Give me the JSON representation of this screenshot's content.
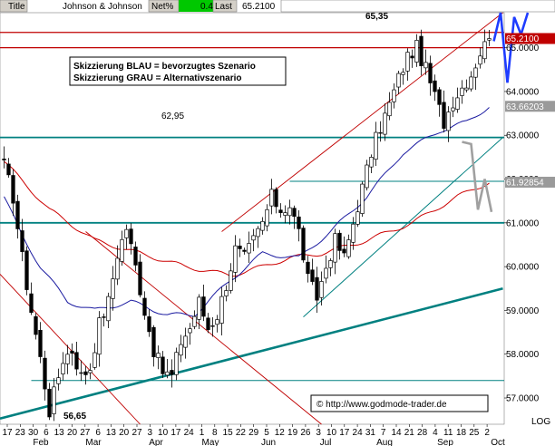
{
  "header": {
    "title": "Title",
    "name": "Johnson & Johnson",
    "netpct_label": "Net%",
    "netpct_value": "0.41",
    "last_label": "Last",
    "last_value": "65.2100"
  },
  "colors": {
    "blue_scenario": "#1e3cff",
    "grey_scenario": "#a0a0a0",
    "resistance_red": "#c00000",
    "teal": "#008080",
    "ma_red": "#cc0000",
    "ma_blue": "#1a1aa0",
    "netpct_bg": "#00c800"
  },
  "chart_data": {
    "type": "candlestick",
    "legend_note_1": "Skizzierung BLAU = bevorzugtes Szenario",
    "legend_note_2": "Skizzierung GRAU = Alternativszenario",
    "level_labels": {
      "high": "65,35",
      "low": "56,65",
      "mid": "62,95"
    },
    "copyright": "© http://www.godmode-trader.de",
    "log_label": "LOG",
    "ylim": [
      56.4,
      65.8
    ],
    "y_ticks": [
      "57.0000",
      "58.0000",
      "59.0000",
      "60.0000",
      "61.0000",
      "62.0000",
      "63.0000",
      "64.0000",
      "65.0000"
    ],
    "price_labels": {
      "last": "65.2100",
      "ma_blue": "63.66203",
      "ma_red": "61.92854"
    },
    "x_day_ticks": [
      "17",
      "23",
      "30",
      "6",
      "13",
      "20",
      "27",
      "6",
      "13",
      "20",
      "27",
      "3",
      "10",
      "17",
      "24",
      "1",
      "8",
      "15",
      "22",
      "29",
      "5",
      "12",
      "19",
      "26",
      "3",
      "10",
      "17",
      "24",
      "31",
      "7",
      "14",
      "21",
      "28",
      "4",
      "11",
      "18",
      "25",
      "2"
    ],
    "x_month_ticks": [
      "Feb",
      "Mar",
      "Apr",
      "May",
      "Jun",
      "Jul",
      "Aug",
      "Sep",
      "Oct"
    ],
    "horizontal_levels": [
      {
        "value": 65.35,
        "kind": "resistance"
      },
      {
        "value": 65.0,
        "kind": "resistance"
      },
      {
        "value": 62.95,
        "kind": "support"
      },
      {
        "value": 61.0,
        "kind": "support"
      },
      {
        "value": 61.95,
        "kind": "support-short"
      },
      {
        "value": 57.4,
        "kind": "support-thin"
      }
    ],
    "anchors": [
      [
        0,
        62.3
      ],
      [
        2,
        61.6
      ],
      [
        4,
        60.2
      ],
      [
        6,
        59.0
      ],
      [
        8,
        57.9
      ],
      [
        9,
        57.3
      ],
      [
        10,
        56.7
      ],
      [
        11,
        57.1
      ],
      [
        13,
        57.9
      ],
      [
        15,
        58.1
      ],
      [
        17,
        57.5
      ],
      [
        19,
        57.7
      ],
      [
        21,
        58.7
      ],
      [
        23,
        59.2
      ],
      [
        25,
        60.3
      ],
      [
        27,
        60.9
      ],
      [
        29,
        60.0
      ],
      [
        31,
        59.0
      ],
      [
        33,
        58.1
      ],
      [
        35,
        57.6
      ],
      [
        37,
        57.5
      ],
      [
        39,
        58.3
      ],
      [
        41,
        58.6
      ],
      [
        43,
        59.2
      ],
      [
        45,
        58.6
      ],
      [
        47,
        58.9
      ],
      [
        49,
        59.6
      ],
      [
        51,
        60.4
      ],
      [
        53,
        60.2
      ],
      [
        55,
        60.6
      ],
      [
        57,
        61.0
      ],
      [
        59,
        61.6
      ],
      [
        61,
        61.3
      ],
      [
        63,
        61.4
      ],
      [
        65,
        60.8
      ],
      [
        67,
        59.7
      ],
      [
        69,
        59.3
      ],
      [
        71,
        60.0
      ],
      [
        73,
        60.6
      ],
      [
        75,
        60.2
      ],
      [
        77,
        61.0
      ],
      [
        79,
        61.8
      ],
      [
        81,
        62.6
      ],
      [
        83,
        63.2
      ],
      [
        85,
        63.7
      ],
      [
        87,
        64.3
      ],
      [
        89,
        64.8
      ],
      [
        91,
        65.0
      ],
      [
        93,
        64.5
      ],
      [
        95,
        63.9
      ],
      [
        97,
        63.3
      ],
      [
        99,
        63.8
      ],
      [
        101,
        64.1
      ],
      [
        103,
        64.4
      ],
      [
        105,
        64.9
      ],
      [
        107,
        65.21
      ]
    ],
    "ma_red_anchors": [
      [
        0,
        62.4
      ],
      [
        10,
        61.3
      ],
      [
        20,
        60.6
      ],
      [
        30,
        60.3
      ],
      [
        40,
        60.0
      ],
      [
        50,
        59.8
      ],
      [
        57,
        60.0
      ],
      [
        63,
        60.2
      ],
      [
        70,
        60.3
      ],
      [
        80,
        60.6
      ],
      [
        90,
        61.0
      ],
      [
        100,
        61.6
      ],
      [
        107,
        61.93
      ]
    ],
    "ma_blue_anchors": [
      [
        0,
        61.6
      ],
      [
        4,
        60.7
      ],
      [
        8,
        60.0
      ],
      [
        14,
        59.2
      ],
      [
        20,
        59.0
      ],
      [
        28,
        59.2
      ],
      [
        36,
        58.9
      ],
      [
        42,
        58.9
      ],
      [
        50,
        59.7
      ],
      [
        57,
        60.3
      ],
      [
        65,
        60.2
      ],
      [
        72,
        60.8
      ],
      [
        80,
        61.6
      ],
      [
        88,
        62.6
      ],
      [
        96,
        63.1
      ],
      [
        102,
        63.3
      ],
      [
        107,
        63.66
      ]
    ],
    "trendlines": [
      {
        "name": "long-term support",
        "from": [
          -2,
          56.5
        ],
        "to": [
          110,
          59.5
        ]
      },
      {
        "name": "upper channel",
        "from": [
          48,
          60.8
        ],
        "to": [
          110,
          65.8
        ]
      },
      {
        "name": "lower channel",
        "from": [
          66,
          58.85
        ],
        "to": [
          110,
          62.95
        ]
      },
      {
        "name": "descending 1",
        "from": [
          -2,
          59.95
        ],
        "to": [
          30,
          56.4
        ]
      },
      {
        "name": "descending 2",
        "from": [
          18,
          60.8
        ],
        "to": [
          70,
          56.4
        ]
      }
    ],
    "scenario_blue": [
      [
        108,
        65.15
      ],
      [
        109.5,
        65.8
      ],
      [
        111,
        64.2
      ],
      [
        112.5,
        65.7
      ],
      [
        114,
        65.3
      ],
      [
        115.5,
        65.8
      ]
    ],
    "scenario_grey": [
      [
        101,
        62.85
      ],
      [
        103,
        62.8
      ],
      [
        104.5,
        61.3
      ],
      [
        106,
        62.0
      ],
      [
        107.5,
        61.25
      ]
    ]
  }
}
